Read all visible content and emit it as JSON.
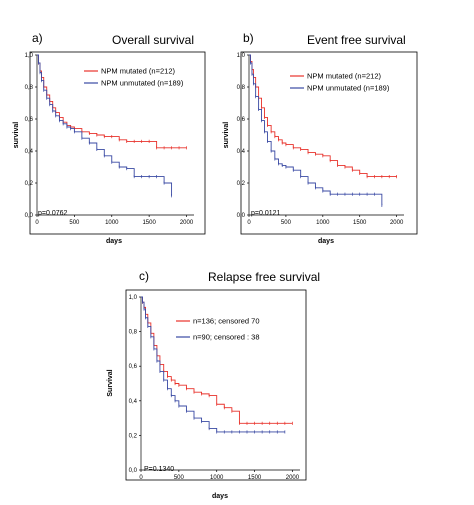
{
  "chart_data": [
    {
      "type": "line",
      "letter": "a)",
      "title": "Overall survival",
      "xlabel": "days",
      "ylabel": "survival",
      "xlim": [
        0,
        2100
      ],
      "ylim": [
        0,
        1.0
      ],
      "xticks": [
        "0",
        "500",
        "1000",
        "1500",
        "2000"
      ],
      "yticks": [
        "0,0",
        "0,2",
        "0,4",
        "0,6",
        "0,8",
        "1,0"
      ],
      "annotation": "p=0.0762",
      "legend_position": "top-right",
      "series": [
        {
          "name": "NPM mutated (n=212)",
          "color": "#e8312a",
          "x": [
            0,
            20,
            40,
            60,
            90,
            130,
            170,
            210,
            250,
            300,
            350,
            400,
            450,
            500,
            600,
            700,
            800,
            900,
            1000,
            1100,
            1200,
            1300,
            1400,
            1500,
            1600,
            1700,
            1800,
            1900,
            2000
          ],
          "y": [
            1.0,
            0.95,
            0.9,
            0.86,
            0.8,
            0.75,
            0.71,
            0.67,
            0.64,
            0.61,
            0.58,
            0.56,
            0.55,
            0.54,
            0.52,
            0.51,
            0.5,
            0.49,
            0.49,
            0.47,
            0.46,
            0.46,
            0.46,
            0.46,
            0.42,
            0.42,
            0.42,
            0.42,
            0.42
          ]
        },
        {
          "name": "NPM unmutated (n=189)",
          "color": "#3949a3",
          "x": [
            0,
            20,
            40,
            60,
            90,
            130,
            170,
            210,
            250,
            300,
            350,
            400,
            450,
            500,
            600,
            700,
            800,
            900,
            1000,
            1100,
            1200,
            1300,
            1400,
            1500,
            1600,
            1700,
            1800
          ],
          "y": [
            1.0,
            0.95,
            0.89,
            0.84,
            0.78,
            0.73,
            0.69,
            0.65,
            0.62,
            0.59,
            0.57,
            0.55,
            0.54,
            0.52,
            0.48,
            0.45,
            0.41,
            0.37,
            0.33,
            0.3,
            0.29,
            0.24,
            0.24,
            0.24,
            0.24,
            0.2,
            0.12
          ]
        }
      ]
    },
    {
      "type": "line",
      "letter": "b)",
      "title": "Event free survival",
      "xlabel": "days",
      "ylabel": "survival",
      "xlim": [
        0,
        2100
      ],
      "ylim": [
        0,
        1.0
      ],
      "xticks": [
        "0",
        "500",
        "1000",
        "1500",
        "2000"
      ],
      "yticks": [
        "0,0",
        "0,2",
        "0,4",
        "0,6",
        "0,8",
        "1,0"
      ],
      "annotation": "p=0.0121",
      "legend_position": "top-right",
      "series": [
        {
          "name": "NPM mutated (n=212)",
          "color": "#e8312a",
          "x": [
            0,
            20,
            40,
            60,
            90,
            130,
            170,
            210,
            250,
            300,
            350,
            400,
            450,
            500,
            600,
            700,
            800,
            900,
            1000,
            1100,
            1200,
            1300,
            1400,
            1500,
            1600,
            1700,
            1800,
            1900,
            2000
          ],
          "y": [
            1.0,
            0.96,
            0.91,
            0.86,
            0.8,
            0.73,
            0.67,
            0.61,
            0.56,
            0.52,
            0.49,
            0.47,
            0.45,
            0.44,
            0.42,
            0.41,
            0.39,
            0.38,
            0.37,
            0.34,
            0.31,
            0.3,
            0.28,
            0.26,
            0.24,
            0.24,
            0.24,
            0.24,
            0.24
          ]
        },
        {
          "name": "NPM unmutated (n=189)",
          "color": "#3949a3",
          "x": [
            0,
            20,
            40,
            60,
            90,
            130,
            170,
            210,
            250,
            300,
            350,
            400,
            450,
            500,
            600,
            700,
            800,
            900,
            1000,
            1100,
            1200,
            1300,
            1400,
            1500,
            1600,
            1700,
            1800
          ],
          "y": [
            1.0,
            0.95,
            0.88,
            0.82,
            0.74,
            0.66,
            0.59,
            0.52,
            0.46,
            0.4,
            0.35,
            0.32,
            0.31,
            0.3,
            0.28,
            0.24,
            0.2,
            0.17,
            0.15,
            0.13,
            0.13,
            0.13,
            0.13,
            0.13,
            0.13,
            0.13,
            0.06
          ]
        }
      ]
    },
    {
      "type": "line",
      "letter": "c)",
      "title": "Relapse free survival",
      "xlabel": "days",
      "ylabel": "Survival",
      "xlim": [
        0,
        2100
      ],
      "ylim": [
        0,
        1.0
      ],
      "xticks": [
        "0",
        "500",
        "1000",
        "1500",
        "2000"
      ],
      "yticks": [
        "0,0",
        "0,2",
        "0,4",
        "0,6",
        "0,8",
        "1,0"
      ],
      "annotation": "P=0.1340",
      "legend_position": "top-right",
      "series": [
        {
          "name": "n=136; censored 70",
          "color": "#e8312a",
          "x": [
            0,
            20,
            40,
            60,
            90,
            130,
            170,
            210,
            250,
            300,
            350,
            400,
            450,
            500,
            600,
            700,
            800,
            900,
            1000,
            1100,
            1200,
            1300,
            1400,
            1500,
            1600,
            1700,
            1800,
            1900,
            2000
          ],
          "y": [
            1.0,
            0.97,
            0.94,
            0.9,
            0.85,
            0.79,
            0.72,
            0.66,
            0.61,
            0.57,
            0.54,
            0.52,
            0.5,
            0.49,
            0.47,
            0.45,
            0.44,
            0.43,
            0.38,
            0.36,
            0.34,
            0.27,
            0.27,
            0.27,
            0.27,
            0.27,
            0.27,
            0.27,
            0.27
          ]
        },
        {
          "name": "n=90; censored : 38",
          "color": "#3949a3",
          "x": [
            0,
            20,
            40,
            60,
            90,
            130,
            170,
            210,
            250,
            300,
            350,
            400,
            450,
            500,
            600,
            700,
            800,
            900,
            1000,
            1100,
            1200,
            1300,
            1400,
            1500,
            1600,
            1700,
            1800,
            1900
          ],
          "y": [
            1.0,
            0.97,
            0.93,
            0.88,
            0.83,
            0.77,
            0.7,
            0.63,
            0.57,
            0.52,
            0.47,
            0.43,
            0.4,
            0.37,
            0.34,
            0.3,
            0.28,
            0.24,
            0.22,
            0.22,
            0.22,
            0.22,
            0.22,
            0.22,
            0.22,
            0.22,
            0.22,
            0.22
          ]
        }
      ]
    }
  ]
}
